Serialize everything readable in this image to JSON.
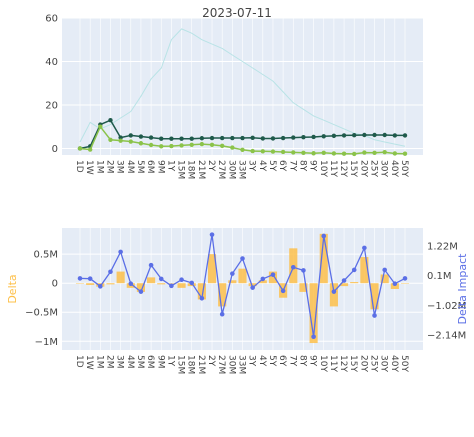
{
  "chart_data": [
    {
      "type": "line",
      "title": "2023-07-11",
      "categories": [
        "1D",
        "1W",
        "1M",
        "2M",
        "3M",
        "4M",
        "5M",
        "6M",
        "9M",
        "1Y",
        "15M",
        "18M",
        "21M",
        "2Y",
        "27M",
        "30M",
        "33M",
        "3Y",
        "4Y",
        "5Y",
        "6Y",
        "7Y",
        "8Y",
        "9Y",
        "10Y",
        "11Y",
        "12Y",
        "15Y",
        "20Y",
        "25Y",
        "30Y",
        "40Y",
        "50Y"
      ],
      "ylim": [
        -3,
        60
      ],
      "yticks": [
        0,
        20,
        40,
        60
      ],
      "grid": true,
      "colors": {
        "background": "#e5ecf6",
        "grid": "#ffffff"
      },
      "series": [
        {
          "color": "#b9e3e6",
          "marker": false,
          "values": [
            3,
            12,
            9,
            11,
            14,
            17,
            24,
            32,
            37,
            50,
            55,
            53,
            50,
            48,
            46,
            43,
            40,
            37,
            34,
            31,
            26,
            21,
            18,
            15,
            13,
            11,
            9,
            7,
            6,
            4,
            3,
            2,
            1
          ]
        },
        {
          "color": "#1f5a4b",
          "marker": true,
          "values": [
            0,
            1,
            11,
            13,
            5,
            6,
            5.5,
            5,
            4.5,
            4.5,
            4.5,
            4.5,
            4.7,
            4.8,
            4.8,
            4.8,
            4.8,
            4.9,
            4.6,
            4.6,
            4.8,
            5,
            5.2,
            5.3,
            5.6,
            5.8,
            6,
            6.1,
            6.2,
            6.2,
            6.2,
            6,
            6
          ]
        },
        {
          "color": "#8bc34a",
          "marker": true,
          "values": [
            0,
            -0.5,
            10,
            4,
            3.6,
            3.2,
            2.4,
            1.6,
            1,
            1.1,
            1.4,
            1.7,
            2,
            1.7,
            1.2,
            0.4,
            -0.6,
            -1.2,
            -1.3,
            -1.4,
            -1.6,
            -1.8,
            -2,
            -2.2,
            -2,
            -2.3,
            -2.4,
            -2.5,
            -1.9,
            -2,
            -1.7,
            -2.3,
            -2.4
          ]
        }
      ]
    },
    {
      "type": "bar",
      "categories": [
        "1D",
        "1W",
        "1M",
        "2M",
        "3M",
        "4M",
        "5M",
        "6M",
        "9M",
        "1Y",
        "15M",
        "18M",
        "21M",
        "2Y",
        "27M",
        "30M",
        "33M",
        "3Y",
        "4Y",
        "5Y",
        "6Y",
        "7Y",
        "8Y",
        "9Y",
        "10Y",
        "11Y",
        "12Y",
        "15Y",
        "20Y",
        "25Y",
        "30Y",
        "40Y",
        "50Y"
      ],
      "ylabel": "Delta",
      "y2label": "Delta Impact",
      "ylim": [
        -1.15,
        0.95
      ],
      "yticks": [
        -1,
        -0.5,
        0,
        0.5
      ],
      "yticklabels": [
        "−1M",
        "−0.5M",
        "0",
        "0.5M"
      ],
      "y2lim": [
        -2.7,
        1.9
      ],
      "y2ticks": [
        -2.14,
        -1.02,
        0.1,
        1.22
      ],
      "y2ticklabels": [
        "−2.14M",
        "−1.02M",
        "0.1M",
        "1.22M"
      ],
      "grid": true,
      "colors": {
        "bars": "#fdc04a",
        "line": "#5b6fe6",
        "ylabel": "#fdc04a",
        "y2label": "#5b6fe6",
        "background": "#e5ecf6"
      },
      "series": [
        {
          "name": "Delta",
          "type": "bar",
          "values": [
            0,
            -0.03,
            -0.06,
            -0.02,
            0.2,
            -0.08,
            -0.15,
            0.1,
            -0.02,
            -0.01,
            -0.08,
            -0.05,
            -0.28,
            0.5,
            -0.4,
            0.05,
            0.25,
            -0.05,
            0.05,
            0.2,
            -0.25,
            0.6,
            -0.15,
            -1.03,
            0.85,
            -0.4,
            -0.05,
            0.02,
            0.45,
            -0.45,
            0.15,
            -0.1,
            0
          ]
        },
        {
          "name": "Delta Impact",
          "type": "line",
          "values": [
            0,
            -0.01,
            -0.3,
            0.25,
            1,
            -0.2,
            -0.5,
            0.5,
            -0.02,
            -0.28,
            -0.05,
            -0.17,
            -0.75,
            1.65,
            -1.35,
            0.18,
            0.75,
            -0.35,
            -0.02,
            0.14,
            -0.47,
            0.42,
            0.3,
            -2.2,
            1.6,
            -0.5,
            -0.08,
            0.32,
            1.15,
            -1.4,
            0.32,
            -0.2,
            0
          ]
        }
      ]
    }
  ]
}
